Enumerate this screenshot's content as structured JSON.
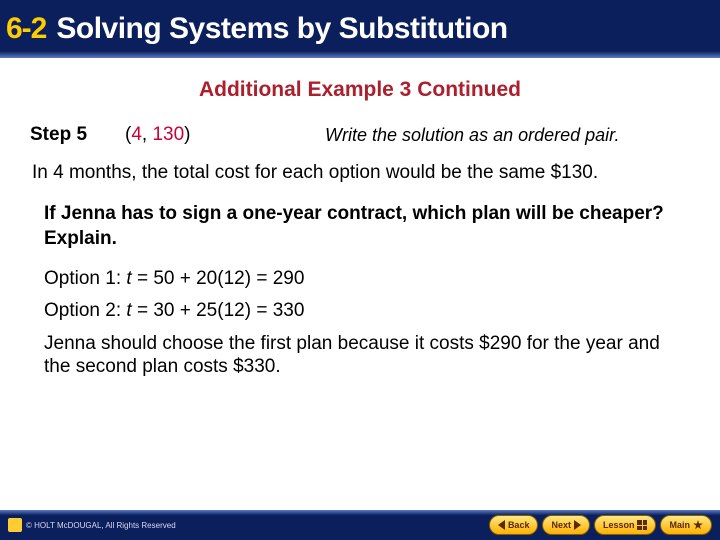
{
  "header": {
    "section_number": "6-2",
    "section_title": "Solving Systems by Substitution"
  },
  "subtitle": "Additional Example 3 Continued",
  "step": {
    "label": "Step 5",
    "pair_open": "(",
    "pair_n1": "4",
    "pair_comma": ", ",
    "pair_n2": "130",
    "pair_close": ")",
    "instruction": "Write the solution as an ordered pair."
  },
  "body1": "In 4 months, the total cost for each option would be the same $130.",
  "question": "If Jenna has to sign a one-year contract, which plan will be cheaper? Explain.",
  "option1_prefix": "Option 1: ",
  "option1_var": "t",
  "option1_rest": " = 50 + 20(12) = 290",
  "option2_prefix": "Option 2: ",
  "option2_var": "t",
  "option2_rest": " = 30 + 25(12) = 330",
  "conclusion": "Jenna should choose the first plan because it costs $290 for the year and the second plan costs $330.",
  "footer": {
    "copyright": "© HOLT McDOUGAL, All Rights Reserved",
    "back": "Back",
    "next": "Next",
    "lesson": "Lesson",
    "main": "Main"
  },
  "colors": {
    "header_bg": "#0a1f5c",
    "accent_yellow": "#ffcc00",
    "maroon": "#ac1f2d",
    "solution_red": "#cc0033"
  }
}
